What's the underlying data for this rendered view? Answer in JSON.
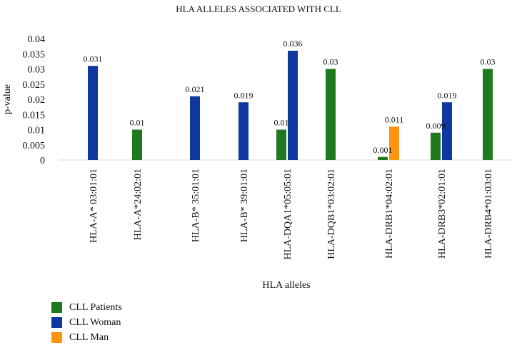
{
  "chart_data": {
    "type": "bar",
    "title": "HLA ALLELES ASSOCIATED WITH CLL",
    "xlabel": "HLA alleles",
    "ylabel": "p-value",
    "ylim": [
      0,
      0.04
    ],
    "yticks": [
      0,
      0.005,
      0.01,
      0.015,
      0.02,
      0.025,
      0.03,
      0.035,
      0.04
    ],
    "ytick_labels": [
      "0",
      "0.005",
      "0.01",
      "0.015",
      "0.02",
      "0.025",
      "0.03",
      "0.035",
      "0.04"
    ],
    "categories": [
      "HLA-A* 03:01:01",
      "HLA-A*24:02:01",
      "HLA-B* 35:01:01",
      "HLA-B* 39:01:01",
      "HLA-DQA1*05:05:01",
      "HLA-DQB1*03:02:01",
      "HLA-DRB1*04:02:01",
      "HLA-DRB3*02:01:01",
      "HLA-DRB4*01:03:01"
    ],
    "series": [
      {
        "name": "CLL Patients",
        "color": "#1f7a1f",
        "values": [
          null,
          0.01,
          null,
          null,
          0.01,
          0.03,
          0.001,
          0.009,
          0.03
        ],
        "labels": [
          "",
          "0.01",
          "",
          "",
          "0.01",
          "0.03",
          "0.001",
          "0.009",
          "0.03"
        ]
      },
      {
        "name": "CLL Woman",
        "color": "#0f37a0",
        "values": [
          0.031,
          null,
          0.021,
          0.019,
          0.036,
          null,
          null,
          0.019,
          null
        ],
        "labels": [
          "0.031",
          "",
          "0.021",
          "0.019",
          "0.036",
          "",
          "",
          "0.019",
          ""
        ]
      },
      {
        "name": "CLL Man",
        "color": "#ff9410",
        "values": [
          null,
          null,
          null,
          null,
          null,
          null,
          0.011,
          null,
          null
        ],
        "labels": [
          "",
          "",
          "",
          "",
          "",
          "",
          "0.011",
          "",
          ""
        ]
      }
    ],
    "grid": false,
    "legend_position": "bottom-left"
  }
}
